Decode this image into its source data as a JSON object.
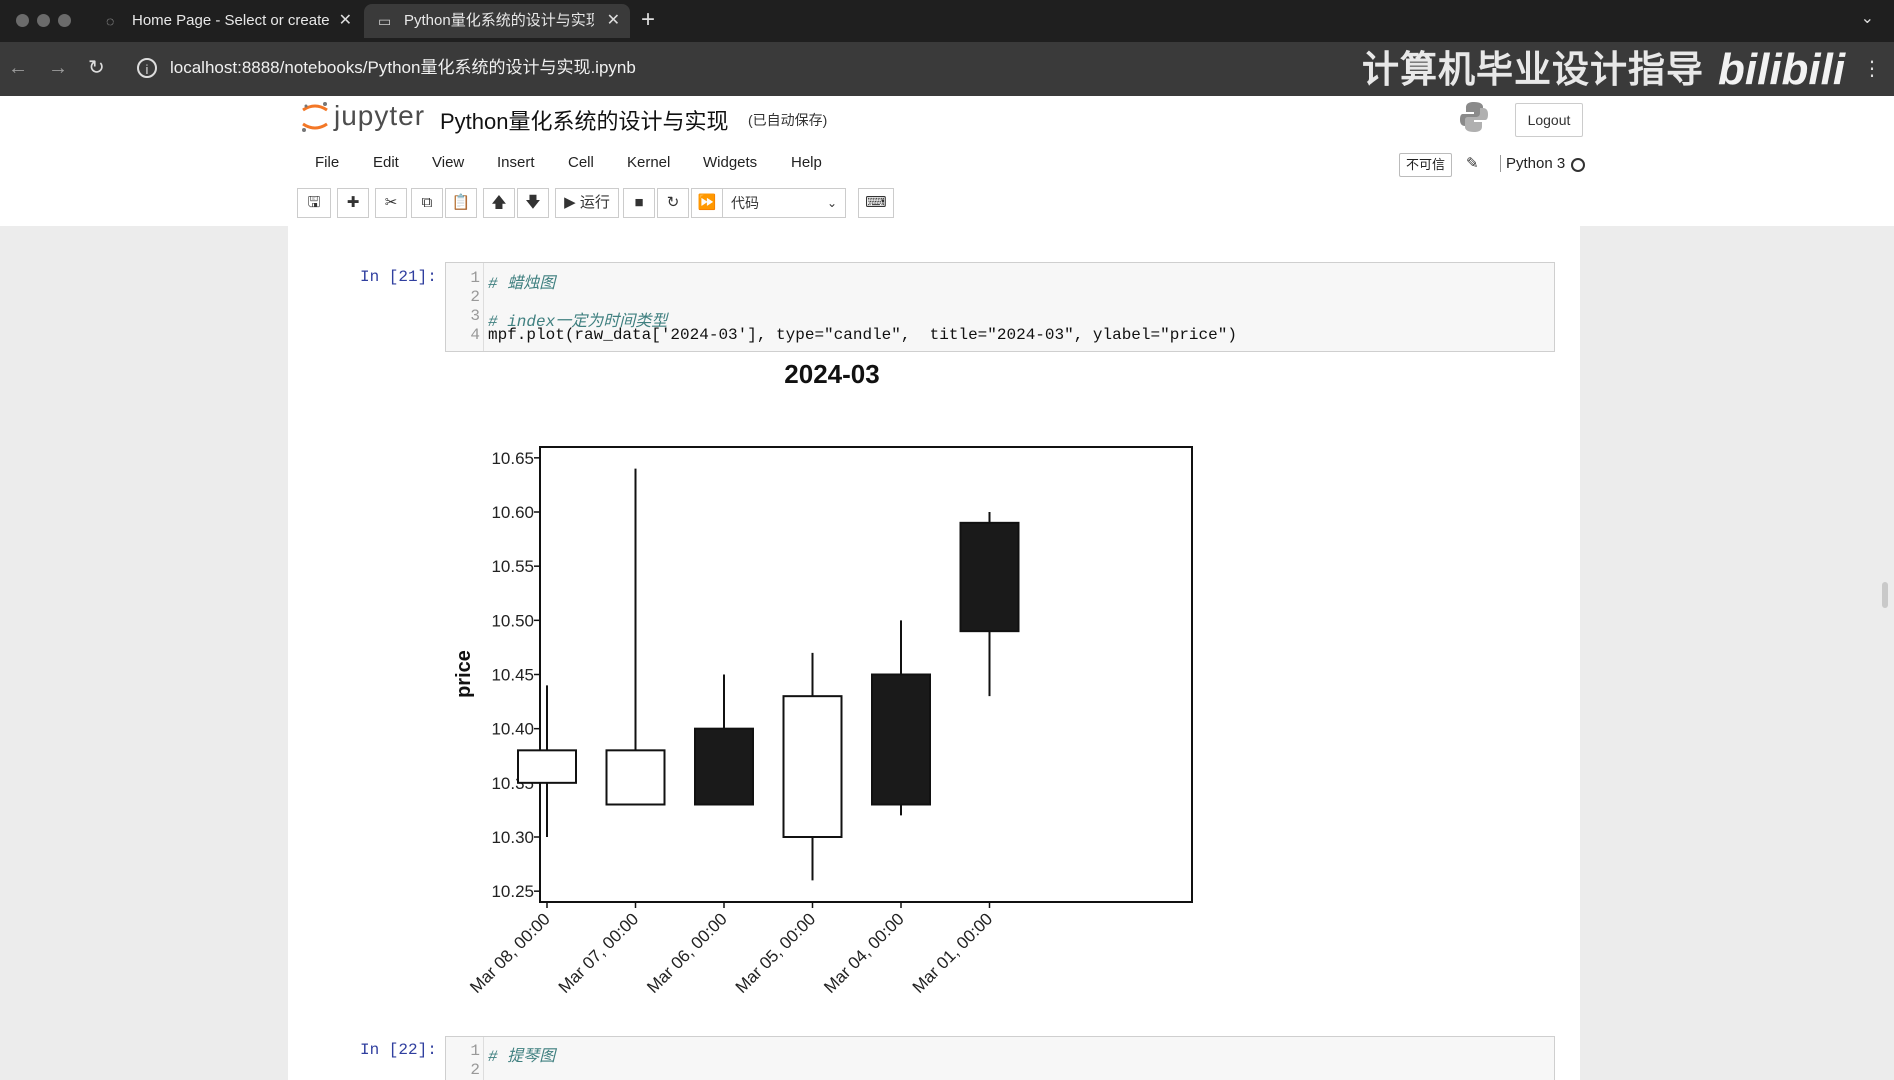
{
  "browser": {
    "tabs": [
      {
        "title": "Home Page - Select or create",
        "active": false
      },
      {
        "title": "Python量化系统的设计与实现",
        "active": true
      }
    ],
    "new_tab": "+",
    "url": "localhost:8888/notebooks/Python量化系统的设计与实现.ipynb",
    "watermark": "计算机毕业设计指导",
    "watermark_logo": "bilibili"
  },
  "jupyter": {
    "logo_text": "jupyter",
    "notebook_title": "Python量化系统的设计与实现",
    "autosave": "(已自动保存)",
    "logout": "Logout",
    "menu": [
      "File",
      "Edit",
      "View",
      "Insert",
      "Cell",
      "Kernel",
      "Widgets",
      "Help"
    ],
    "trust": "不可信",
    "kernel": "Python 3",
    "toolbar": {
      "run_label": "运行",
      "cell_type": "代码"
    }
  },
  "cells": [
    {
      "prompt": "In [21]:",
      "lines": [
        {
          "num": "1",
          "text": "# 蜡烛图"
        },
        {
          "num": "2",
          "text": ""
        },
        {
          "num": "3",
          "text": "# index一定为时间类型"
        },
        {
          "num": "4",
          "text": "mpf.plot(raw_data['2024-03'], type=\"candle\",  title=\"2024-03\", ylabel=\"price\")"
        }
      ]
    },
    {
      "prompt": "In [22]:",
      "lines": [
        {
          "num": "1",
          "text": "# 提琴图"
        },
        {
          "num": "2",
          "text": ""
        }
      ]
    }
  ],
  "chart_data": {
    "type": "candlestick",
    "title": "2024-03",
    "ylabel": "price",
    "ylim": [
      10.24,
      10.66
    ],
    "yticks": [
      "10.25",
      "10.30",
      "10.35",
      "10.40",
      "10.45",
      "10.50",
      "10.55",
      "10.60",
      "10.65"
    ],
    "categories": [
      "Mar 08, 00:00",
      "Mar 07, 00:00",
      "Mar 06, 00:00",
      "Mar 05, 00:00",
      "Mar 04, 00:00",
      "Mar 01, 00:00"
    ],
    "open": [
      10.35,
      10.33,
      10.4,
      10.3,
      10.45,
      10.59
    ],
    "close": [
      10.38,
      10.38,
      10.33,
      10.43,
      10.33,
      10.49
    ],
    "high": [
      10.44,
      10.64,
      10.45,
      10.47,
      10.5,
      10.6
    ],
    "low": [
      10.3,
      10.33,
      10.33,
      10.26,
      10.32,
      10.43
    ],
    "up_color": "#ffffff",
    "down_color": "#1a1a1a",
    "grid": false
  }
}
